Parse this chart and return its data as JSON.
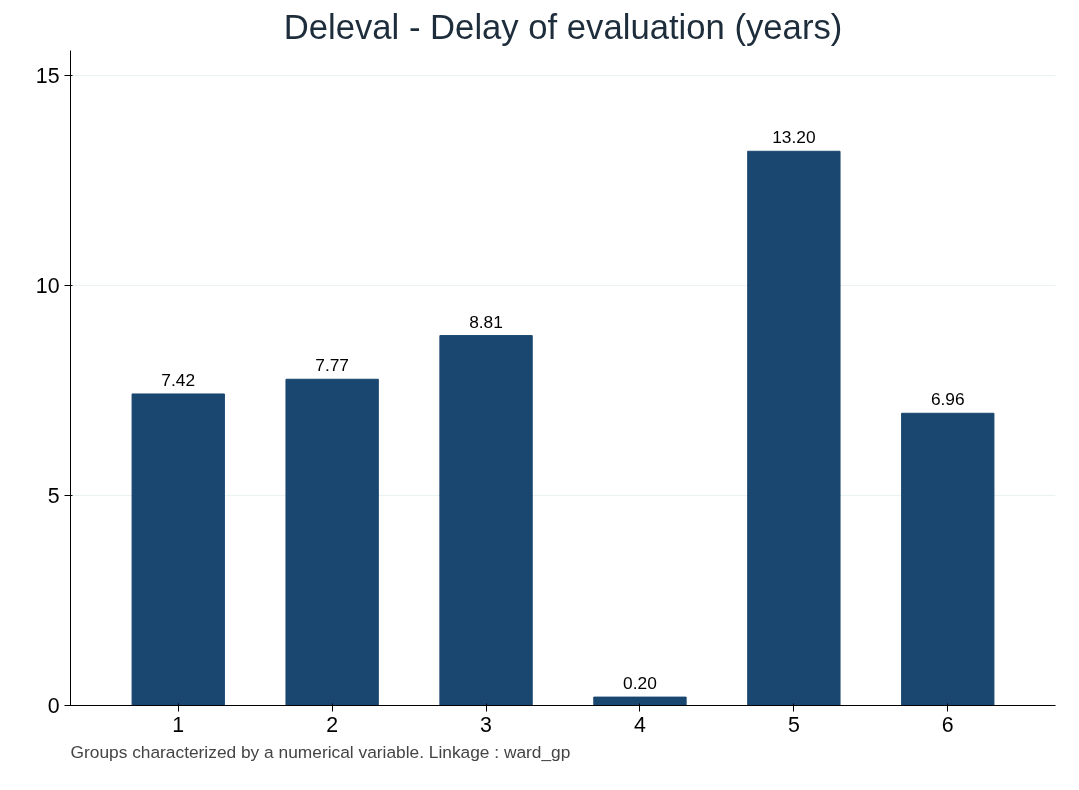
{
  "chart_data": {
    "type": "bar",
    "title": "Deleval - Delay of evaluation (years)",
    "categories": [
      "1",
      "2",
      "3",
      "4",
      "5",
      "6"
    ],
    "values": [
      7.42,
      7.77,
      8.81,
      0.2,
      13.2,
      6.96
    ],
    "value_labels": [
      "7.42",
      "7.77",
      "8.81",
      "0.20",
      "13.20",
      "6.96"
    ],
    "color": "#1a476f",
    "ylim": [
      0,
      15.6
    ],
    "yticks": [
      0,
      5,
      10,
      15
    ],
    "grid": "y",
    "annotations": [
      "Groups characterized by a numerical variable. Linkage : ward_gp"
    ]
  }
}
